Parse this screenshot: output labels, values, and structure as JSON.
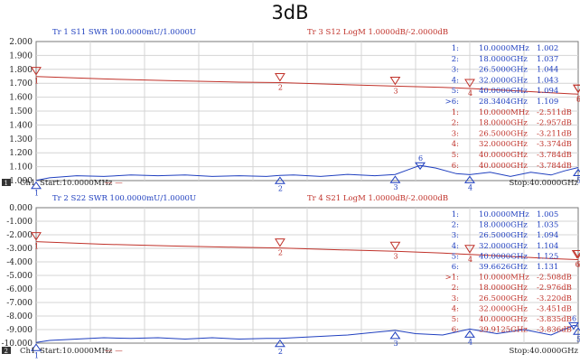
{
  "title": "3dB",
  "colors": {
    "blue": "#1f3fbf",
    "red": "#c0322a",
    "grid": "#d4d4d4",
    "frame": "#7a7a7a"
  },
  "panels": [
    {
      "header_left": "Tr 1  S11 SWR 100.0000mU/1.0000U",
      "header_right": "Tr 3  S12 LogM 1.0000dB/-2.0000dB",
      "ch_label": "Ch1",
      "ch_num": "1",
      "start": "Start:10.0000MHz",
      "dash": "—  —",
      "stop": "Stop:40.0000GHz",
      "markers": [
        {
          "label": "1:",
          "freq": "10.0000MHz",
          "val": "1.002",
          "color": "blue",
          "active": false
        },
        {
          "label": "2:",
          "freq": "18.0000GHz",
          "val": "1.037",
          "color": "blue",
          "active": false
        },
        {
          "label": "3:",
          "freq": "26.5000GHz",
          "val": "1.044",
          "color": "blue",
          "active": false
        },
        {
          "label": "4:",
          "freq": "32.0000GHz",
          "val": "1.043",
          "color": "blue",
          "active": false
        },
        {
          "label": "5:",
          "freq": "40.0000GHz",
          "val": "1.094",
          "color": "blue",
          "active": false
        },
        {
          "label": ">6:",
          "freq": "28.3404GHz",
          "val": "1.109",
          "color": "blue",
          "active": true
        },
        {
          "label": "1:",
          "freq": "10.0000MHz",
          "val": "-2.511dB",
          "color": "red",
          "active": false
        },
        {
          "label": "2:",
          "freq": "18.0000GHz",
          "val": "-2.957dB",
          "color": "red",
          "active": false
        },
        {
          "label": "3:",
          "freq": "26.5000GHz",
          "val": "-3.211dB",
          "color": "red",
          "active": false
        },
        {
          "label": "4:",
          "freq": "32.0000GHz",
          "val": "-3.374dB",
          "color": "red",
          "active": false
        },
        {
          "label": "5:",
          "freq": "40.0000GHz",
          "val": "-3.784dB",
          "color": "red",
          "active": false
        },
        {
          "label": "6:",
          "freq": "40.0000GHz",
          "val": "-3.784dB",
          "color": "red",
          "active": false
        }
      ]
    },
    {
      "header_left": "Tr 2  S22 SWR 100.0000mU/1.0000U",
      "header_right": "Tr 4  S21 LogM 1.0000dB/-2.0000dB",
      "ch_label": "Ch1",
      "ch_num": "2",
      "start": "Start:10.0000MHz",
      "dash": "—  —",
      "stop": "Stop:40.0000GHz",
      "markers": [
        {
          "label": "1:",
          "freq": "10.0000MHz",
          "val": "1.005",
          "color": "blue",
          "active": false
        },
        {
          "label": "2:",
          "freq": "18.0000GHz",
          "val": "1.035",
          "color": "blue",
          "active": false
        },
        {
          "label": "3:",
          "freq": "26.5000GHz",
          "val": "1.094",
          "color": "blue",
          "active": false
        },
        {
          "label": "4:",
          "freq": "32.0000GHz",
          "val": "1.104",
          "color": "blue",
          "active": false
        },
        {
          "label": "5:",
          "freq": "40.0000GHz",
          "val": "1.125",
          "color": "blue",
          "active": false
        },
        {
          "label": "6:",
          "freq": "39.6626GHz",
          "val": "1.131",
          "color": "blue",
          "active": false
        },
        {
          "label": ">1:",
          "freq": "10.0000MHz",
          "val": "-2.508dB",
          "color": "red",
          "active": true
        },
        {
          "label": "2:",
          "freq": "18.0000GHz",
          "val": "-2.976dB",
          "color": "red",
          "active": false
        },
        {
          "label": "3:",
          "freq": "26.5000GHz",
          "val": "-3.220dB",
          "color": "red",
          "active": false
        },
        {
          "label": "4:",
          "freq": "32.0000GHz",
          "val": "-3.451dB",
          "color": "red",
          "active": false
        },
        {
          "label": "5:",
          "freq": "40.0000GHz",
          "val": "-3.835dB",
          "color": "red",
          "active": false
        },
        {
          "label": "6:",
          "freq": "39.9125GHz",
          "val": "-3.836dB",
          "color": "red",
          "active": false
        }
      ]
    }
  ],
  "chart_data": [
    {
      "type": "line",
      "xlim": [
        0.01,
        40
      ],
      "ylim": [
        1.0,
        2.0
      ],
      "yticks": [
        "2.000",
        "1.900",
        "1.800",
        "1.700",
        "1.600",
        "1.500",
        "1.400",
        "1.300",
        "1.200",
        "1.100",
        "1.000"
      ],
      "series": [
        {
          "color": "blue",
          "x": [
            0.01,
            1,
            3,
            5,
            7,
            9,
            11,
            13,
            15,
            17,
            18,
            19,
            21,
            23,
            25,
            26.5,
            27.5,
            28.34,
            29.5,
            31,
            32,
            33.5,
            35,
            36.5,
            38,
            39,
            40
          ],
          "y": [
            1.002,
            1.02,
            1.035,
            1.03,
            1.04,
            1.035,
            1.04,
            1.03,
            1.035,
            1.03,
            1.037,
            1.04,
            1.03,
            1.045,
            1.035,
            1.044,
            1.08,
            1.109,
            1.09,
            1.05,
            1.043,
            1.06,
            1.03,
            1.06,
            1.04,
            1.07,
            1.094
          ]
        },
        {
          "color": "red",
          "x": [
            0.01,
            5,
            10,
            15,
            18,
            22,
            26.5,
            30,
            32,
            35,
            38,
            40
          ],
          "y": [
            -2.511,
            -2.69,
            -2.82,
            -2.92,
            -2.957,
            -3.08,
            -3.211,
            -3.3,
            -3.374,
            -3.52,
            -3.68,
            -3.784
          ]
        }
      ]
    },
    {
      "type": "line",
      "xlim": [
        0.01,
        40
      ],
      "ylim": [
        -10.0,
        0.0
      ],
      "yticks": [
        "0.000",
        "-1.000",
        "-2.000",
        "-3.000",
        "-4.000",
        "-5.000",
        "-6.000",
        "-7.000",
        "-8.000",
        "-9.000",
        "-10.000"
      ],
      "series": [
        {
          "color": "blue",
          "x": [
            0.01,
            1,
            3,
            5,
            7,
            9,
            11,
            13,
            15,
            17,
            18,
            19,
            21,
            23,
            25,
            26.5,
            28,
            30,
            32,
            34,
            36,
            38,
            39.66,
            40
          ],
          "y": [
            1.005,
            1.02,
            1.03,
            1.04,
            1.035,
            1.04,
            1.03,
            1.04,
            1.03,
            1.035,
            1.035,
            1.04,
            1.05,
            1.06,
            1.08,
            1.094,
            1.07,
            1.06,
            1.104,
            1.07,
            1.1,
            1.06,
            1.131,
            1.125
          ]
        },
        {
          "color": "red",
          "x": [
            0.01,
            5,
            10,
            15,
            18,
            22,
            26.5,
            30,
            32,
            35,
            38,
            39.9,
            40
          ],
          "y": [
            -2.508,
            -2.7,
            -2.83,
            -2.93,
            -2.976,
            -3.1,
            -3.22,
            -3.35,
            -3.451,
            -3.6,
            -3.76,
            -3.836,
            -3.835
          ]
        }
      ]
    }
  ]
}
